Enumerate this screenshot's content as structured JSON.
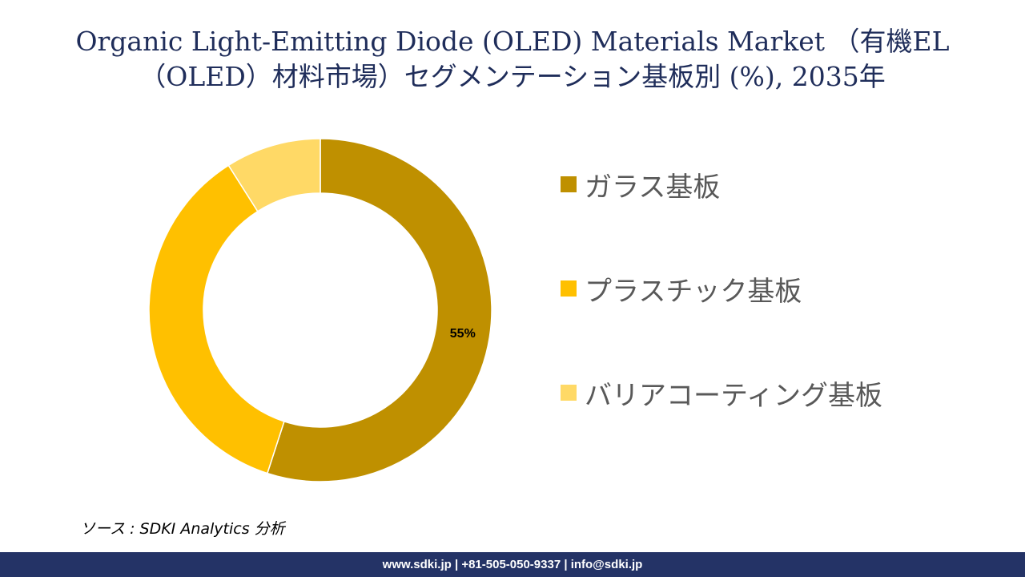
{
  "title": {
    "line1": "Organic Light-Emitting Diode (OLED) Materials Market （有機EL",
    "line2": "（OLED）材料市場）セグメンテーション基板別 (%), 2035年"
  },
  "chart_data": {
    "type": "pie",
    "donut": true,
    "categories": [
      "ガラス基板",
      "プラスチック基板",
      "バリアコーティング基板"
    ],
    "values": [
      55,
      36,
      9
    ],
    "data_labels": [
      "55%",
      "",
      ""
    ],
    "colors": [
      "#bf9000",
      "#ffc000",
      "#ffd966"
    ],
    "legend_position": "right"
  },
  "source": "ソース : SDKI Analytics 分析",
  "footer": "www.sdki.jp | +81-505-050-9337 | info@sdki.jp"
}
